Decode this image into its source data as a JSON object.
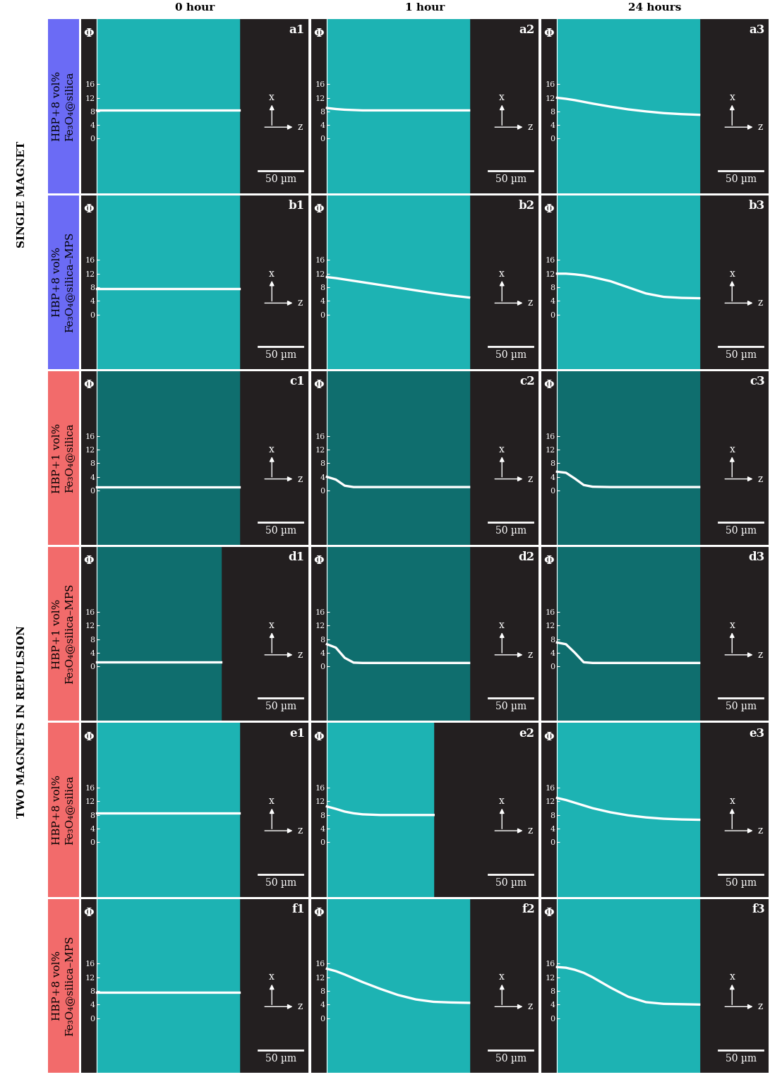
{
  "column_headers": [
    "0 hour",
    "1 hour",
    "24 hours"
  ],
  "groups": [
    {
      "label": "SINGLE MAGNET",
      "color": "#6b6bf5",
      "rows": [
        "HBP+8 vol%\nFe₃O₄@silica",
        "HBP+8 vol%\nFe₃O₄@silica–MPS"
      ]
    },
    {
      "label": "TWO MAGNETS IN REPULSION",
      "color": "#f26b6b",
      "rows": [
        "HBP+1 vol%\nFe₃O₄@silica",
        "HBP+1 vol%\nFe₃O₄@silica–MPS",
        "HBP+8 vol%\nFe₃O₄@silica",
        "HBP+8 vol%\nFe₃O₄@silica–MPS"
      ]
    }
  ],
  "chart_data": [
    {
      "type": "line",
      "title": "a1",
      "ylabel": "Φ",
      "x": [
        0,
        10,
        20,
        30,
        40,
        60,
        80,
        100,
        120,
        140,
        160
      ],
      "values": [
        8.3,
        8.3,
        8.3,
        8.3,
        8.3,
        8.3,
        8.3,
        8.3,
        8.3,
        8.3,
        8.3
      ],
      "xlim": [
        -18,
        238
      ],
      "ylim": [
        -16,
        35
      ],
      "yticks": [
        0,
        4,
        8,
        12,
        16
      ],
      "tick_labels": "y",
      "color": "#1db3b3",
      "annotations": [
        "x",
        "z"
      ],
      "scale_bar": {
        "value": 50,
        "label": "50 µm"
      }
    },
    {
      "type": "line",
      "title": "a2",
      "ylabel": "Φ",
      "x": [
        0,
        10,
        20,
        30,
        40,
        60,
        80,
        100,
        120,
        140,
        160
      ],
      "values": [
        9.0,
        8.7,
        8.5,
        8.4,
        8.3,
        8.3,
        8.3,
        8.3,
        8.3,
        8.3,
        8.3
      ],
      "xlim": [
        -18,
        238
      ],
      "ylim": [
        -16,
        35
      ],
      "yticks": [
        0,
        4,
        8,
        12,
        16
      ],
      "tick_labels": "y",
      "color": "#1db3b3",
      "annotations": [
        "x",
        "z"
      ],
      "scale_bar": {
        "value": 50,
        "label": "50 µm"
      }
    },
    {
      "type": "line",
      "title": "a3",
      "ylabel": "Φ",
      "x": [
        0,
        10,
        20,
        30,
        40,
        60,
        80,
        100,
        120,
        140,
        160
      ],
      "values": [
        12,
        11.7,
        11.3,
        10.8,
        10.3,
        9.4,
        8.6,
        8,
        7.5,
        7.2,
        7
      ],
      "xlim": [
        -18,
        238
      ],
      "ylim": [
        -16,
        35
      ],
      "yticks": [
        0,
        4,
        8,
        12,
        16
      ],
      "tick_labels": "y",
      "color": "#1db3b3",
      "annotations": [
        "x",
        "z"
      ],
      "scale_bar": {
        "value": 50,
        "label": "50 µm"
      }
    },
    {
      "type": "line",
      "title": "b1",
      "ylabel": "Φ",
      "x": [
        0,
        10,
        20,
        30,
        40,
        60,
        80,
        100,
        120,
        140,
        160
      ],
      "values": [
        7.7,
        7.7,
        7.7,
        7.7,
        7.7,
        7.7,
        7.7,
        7.7,
        7.7,
        7.7,
        7.7
      ],
      "xlim": [
        -18,
        238
      ],
      "ylim": [
        -16,
        35
      ],
      "yticks": [
        0,
        4,
        8,
        12,
        16
      ],
      "tick_labels": "y",
      "color": "#1db3b3",
      "annotations": [
        "x",
        "z"
      ],
      "scale_bar": {
        "value": 50,
        "label": "50 µm"
      }
    },
    {
      "type": "line",
      "title": "b2",
      "ylabel": "Φ",
      "x": [
        0,
        10,
        20,
        30,
        40,
        60,
        80,
        100,
        120,
        140,
        160
      ],
      "values": [
        11,
        10.7,
        10.3,
        9.9,
        9.5,
        8.7,
        7.9,
        7.1,
        6.3,
        5.6,
        5
      ],
      "xlim": [
        -18,
        238
      ],
      "ylim": [
        -16,
        35
      ],
      "yticks": [
        0,
        4,
        8,
        12,
        16
      ],
      "tick_labels": "y",
      "color": "#1db3b3",
      "annotations": [
        "x",
        "z"
      ],
      "scale_bar": {
        "value": 50,
        "label": "50 µm"
      }
    },
    {
      "type": "line",
      "title": "b3",
      "ylabel": "Φ",
      "x": [
        0,
        10,
        20,
        30,
        40,
        60,
        80,
        100,
        120,
        140,
        160
      ],
      "values": [
        12,
        12,
        11.8,
        11.5,
        11,
        9.8,
        8,
        6.2,
        5.2,
        4.9,
        4.8
      ],
      "xlim": [
        -18,
        238
      ],
      "ylim": [
        -16,
        35
      ],
      "yticks": [
        0,
        4,
        8,
        12,
        16
      ],
      "tick_labels": "y",
      "color": "#1db3b3",
      "annotations": [
        "x",
        "z"
      ],
      "scale_bar": {
        "value": 50,
        "label": "50 µm"
      }
    },
    {
      "type": "line",
      "title": "c1",
      "ylabel": "Φ",
      "x": [
        0,
        10,
        20,
        30,
        40,
        60,
        80,
        100,
        120,
        140,
        160
      ],
      "values": [
        1,
        1,
        1,
        1,
        1,
        1,
        1,
        1,
        1,
        1,
        1
      ],
      "xlim": [
        -18,
        238
      ],
      "ylim": [
        -16,
        35
      ],
      "yticks": [
        0,
        4,
        8,
        12,
        16
      ],
      "tick_labels": "y",
      "color": "#0f6e6e",
      "annotations": [
        "x",
        "z"
      ],
      "scale_bar": {
        "value": 50,
        "label": "50 µm"
      }
    },
    {
      "type": "line",
      "title": "c2",
      "ylabel": "Φ",
      "x": [
        0,
        10,
        20,
        30,
        40,
        60,
        80,
        100,
        120,
        140,
        160
      ],
      "values": [
        4,
        3.2,
        1.4,
        1,
        1,
        1,
        1,
        1,
        1,
        1,
        1
      ],
      "xlim": [
        -18,
        238
      ],
      "ylim": [
        -16,
        35
      ],
      "yticks": [
        0,
        4,
        8,
        12,
        16
      ],
      "tick_labels": "y",
      "color": "#0f6e6e",
      "annotations": [
        "x",
        "z"
      ],
      "scale_bar": {
        "value": 50,
        "label": "50 µm"
      }
    },
    {
      "type": "line",
      "title": "c3",
      "ylabel": "Φ",
      "x": [
        0,
        10,
        20,
        30,
        40,
        60,
        80,
        100,
        120,
        140,
        160
      ],
      "values": [
        5.5,
        5.2,
        3.5,
        1.6,
        1.1,
        1,
        1,
        1,
        1,
        1,
        1
      ],
      "xlim": [
        -18,
        238
      ],
      "ylim": [
        -16,
        35
      ],
      "yticks": [
        0,
        4,
        8,
        12,
        16
      ],
      "tick_labels": "y",
      "color": "#0f6e6e",
      "annotations": [
        "x",
        "z"
      ],
      "scale_bar": {
        "value": 50,
        "label": "50 µm"
      }
    },
    {
      "type": "line",
      "title": "d1",
      "ylabel": "Φ",
      "x": [
        0,
        10,
        20,
        30,
        40,
        60,
        80,
        100,
        120,
        140
      ],
      "values": [
        1.2,
        1.2,
        1.2,
        1.2,
        1.2,
        1.2,
        1.2,
        1.2,
        1.2,
        1.2
      ],
      "xlim": [
        -18,
        238
      ],
      "ylim": [
        -16,
        35
      ],
      "yticks": [
        0,
        4,
        8,
        12,
        16
      ],
      "tick_labels": "y",
      "color": "#0f6e6e",
      "annotations": [
        "x",
        "z"
      ],
      "scale_bar": {
        "value": 50,
        "label": "50 µm"
      }
    },
    {
      "type": "line",
      "title": "d2",
      "ylabel": "Φ",
      "x": [
        0,
        10,
        20,
        30,
        40,
        60,
        80,
        100,
        120,
        140,
        160
      ],
      "values": [
        6.5,
        5.5,
        2.5,
        1.1,
        1,
        1,
        1,
        1,
        1,
        1,
        1
      ],
      "xlim": [
        -18,
        238
      ],
      "ylim": [
        -16,
        35
      ],
      "yticks": [
        0,
        4,
        8,
        12,
        16
      ],
      "tick_labels": "y",
      "color": "#0f6e6e",
      "annotations": [
        "x",
        "z"
      ],
      "scale_bar": {
        "value": 50,
        "label": "50 µm"
      }
    },
    {
      "type": "line",
      "title": "d3",
      "ylabel": "Φ",
      "x": [
        0,
        10,
        20,
        30,
        40,
        60,
        80,
        100,
        120,
        140,
        160
      ],
      "values": [
        7,
        6.5,
        4,
        1.2,
        1,
        1,
        1,
        1,
        1,
        1,
        1
      ],
      "xlim": [
        -18,
        238
      ],
      "ylim": [
        -16,
        35
      ],
      "yticks": [
        0,
        4,
        8,
        12,
        16
      ],
      "tick_labels": "y",
      "color": "#0f6e6e",
      "annotations": [
        "x",
        "z"
      ],
      "scale_bar": {
        "value": 50,
        "label": "50 µm"
      }
    },
    {
      "type": "line",
      "title": "e1",
      "ylabel": "Φ",
      "x": [
        0,
        10,
        20,
        30,
        40,
        60,
        80,
        100,
        120,
        140,
        160
      ],
      "values": [
        8.5,
        8.5,
        8.5,
        8.5,
        8.5,
        8.5,
        8.5,
        8.5,
        8.5,
        8.5,
        8.5
      ],
      "xlim": [
        -18,
        238
      ],
      "ylim": [
        -16,
        35
      ],
      "yticks": [
        0,
        4,
        8,
        12,
        16
      ],
      "tick_labels": "y",
      "color": "#1db3b3",
      "annotations": [
        "x",
        "z"
      ],
      "scale_bar": {
        "value": 50,
        "label": "50 µm"
      }
    },
    {
      "type": "line",
      "title": "e2",
      "ylabel": "Φ",
      "x": [
        0,
        10,
        20,
        30,
        40,
        60,
        80,
        100,
        120
      ],
      "values": [
        10.5,
        9.8,
        9,
        8.5,
        8.2,
        8,
        8,
        8,
        8
      ],
      "xlim": [
        -18,
        238
      ],
      "ylim": [
        -16,
        35
      ],
      "yticks": [
        0,
        4,
        8,
        12,
        16
      ],
      "tick_labels": "y",
      "color": "#1db3b3",
      "annotations": [
        "x",
        "z"
      ],
      "scale_bar": {
        "value": 50,
        "label": "50 µm"
      }
    },
    {
      "type": "line",
      "title": "e3",
      "ylabel": "Φ",
      "x": [
        0,
        10,
        20,
        30,
        40,
        60,
        80,
        100,
        120,
        140,
        160
      ],
      "values": [
        13,
        12.4,
        11.6,
        10.8,
        10,
        8.8,
        7.9,
        7.3,
        6.9,
        6.7,
        6.6
      ],
      "xlim": [
        -18,
        238
      ],
      "ylim": [
        -16,
        35
      ],
      "yticks": [
        0,
        4,
        8,
        12,
        16
      ],
      "tick_labels": "y",
      "color": "#1db3b3",
      "annotations": [
        "x",
        "z"
      ],
      "scale_bar": {
        "value": 50,
        "label": "50 µm"
      }
    },
    {
      "type": "line",
      "title": "f1",
      "ylabel": "Φ",
      "x": [
        0,
        10,
        20,
        30,
        40,
        60,
        80,
        100,
        120,
        140,
        160
      ],
      "values": [
        7.5,
        7.5,
        7.5,
        7.5,
        7.5,
        7.5,
        7.5,
        7.5,
        7.5,
        7.5,
        7.5
      ],
      "xlim": [
        -18,
        238
      ],
      "ylim": [
        -16,
        35
      ],
      "yticks": [
        0,
        4,
        8,
        12,
        16
      ],
      "tick_labels": "y",
      "color": "#1db3b3",
      "annotations": [
        "x",
        "z"
      ],
      "scale_bar": {
        "value": 50,
        "label": "50 µm"
      }
    },
    {
      "type": "line",
      "title": "f2",
      "ylabel": "Φ",
      "x": [
        0,
        10,
        20,
        30,
        40,
        60,
        80,
        100,
        120,
        140,
        160
      ],
      "values": [
        14.5,
        13.8,
        12.8,
        11.7,
        10.6,
        8.6,
        6.8,
        5.5,
        4.8,
        4.6,
        4.5
      ],
      "xlim": [
        -18,
        238
      ],
      "ylim": [
        -16,
        35
      ],
      "yticks": [
        0,
        4,
        8,
        12,
        16
      ],
      "tick_labels": "y",
      "color": "#1db3b3",
      "annotations": [
        "x",
        "z"
      ],
      "scale_bar": {
        "value": 50,
        "label": "50 µm"
      }
    },
    {
      "type": "line",
      "title": "f3",
      "ylabel": "Φ",
      "x": [
        0,
        10,
        20,
        30,
        40,
        60,
        80,
        100,
        120,
        140,
        160
      ],
      "values": [
        15,
        14.8,
        14.2,
        13.3,
        12,
        9,
        6.3,
        4.7,
        4.2,
        4.1,
        4
      ],
      "xlim": [
        -18,
        238
      ],
      "ylim": [
        -16,
        35
      ],
      "yticks": [
        0,
        4,
        8,
        12,
        16
      ],
      "tick_labels": "y",
      "color": "#1db3b3",
      "annotations": [
        "x",
        "z"
      ],
      "scale_bar": {
        "value": 50,
        "label": "50 µm"
      }
    }
  ]
}
